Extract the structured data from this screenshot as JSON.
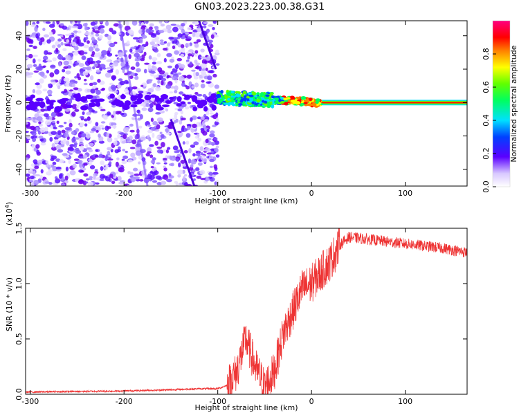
{
  "title": "GN03.2023.223.00.38.G31",
  "chart_data": [
    {
      "type": "heatmap",
      "xlabel": "Height of straight line (km)",
      "ylabel": "Frequency (Hz)",
      "xlim": [
        -305,
        166
      ],
      "ylim": [
        -50,
        49
      ],
      "xticks": [
        -300,
        -200,
        -100,
        0,
        100
      ],
      "yticks": [
        -40,
        -20,
        0,
        20,
        40
      ],
      "colorbar": {
        "label": "Normalized spectral amplitude",
        "range": [
          0,
          1
        ],
        "ticks": [
          "0.0",
          "0.2",
          "0.4",
          "0.6",
          "0.8"
        ],
        "tick_values": [
          0,
          0.2,
          0.4,
          0.6,
          0.8
        ]
      },
      "ridge": {
        "description_x": [
          -100,
          -80,
          -60,
          -40,
          -20,
          0,
          20,
          60,
          100,
          166
        ],
        "frequency": [
          2,
          3,
          4,
          3,
          1,
          0,
          0,
          0,
          0,
          0
        ],
        "amplitude": [
          0.35,
          0.45,
          0.5,
          0.55,
          0.8,
          0.85,
          0.9,
          0.9,
          0.9,
          0.9
        ]
      }
    },
    {
      "type": "line",
      "xlabel": "Height of straight line (km)",
      "ylabel": "SNR (10 * v/v)",
      "multiplier": "(x10",
      "multiplier_exp": "4",
      "multiplier_close": ")",
      "xlim": [
        -305,
        166
      ],
      "ylim": [
        0,
        1.5
      ],
      "xticks": [
        -300,
        -200,
        -100,
        0,
        100
      ],
      "yticks": [
        "0.0",
        "0.5",
        "1.0",
        "1.5"
      ],
      "ytick_values": [
        0,
        0.5,
        1.0,
        1.5
      ],
      "series": [
        {
          "color": "#ee3333",
          "x": [
            -305,
            -250,
            -200,
            -150,
            -120,
            -100,
            -90,
            -80,
            -70,
            -60,
            -50,
            -40,
            -30,
            -20,
            -10,
            0,
            10,
            20,
            30,
            40,
            60,
            80,
            100,
            120,
            140,
            166
          ],
          "y": [
            0.02,
            0.025,
            0.03,
            0.04,
            0.05,
            0.05,
            0.08,
            0.2,
            0.5,
            0.25,
            0.06,
            0.2,
            0.55,
            0.75,
            0.95,
            1.0,
            1.1,
            1.2,
            1.35,
            1.42,
            1.4,
            1.38,
            1.36,
            1.34,
            1.32,
            1.28
          ]
        }
      ]
    }
  ]
}
